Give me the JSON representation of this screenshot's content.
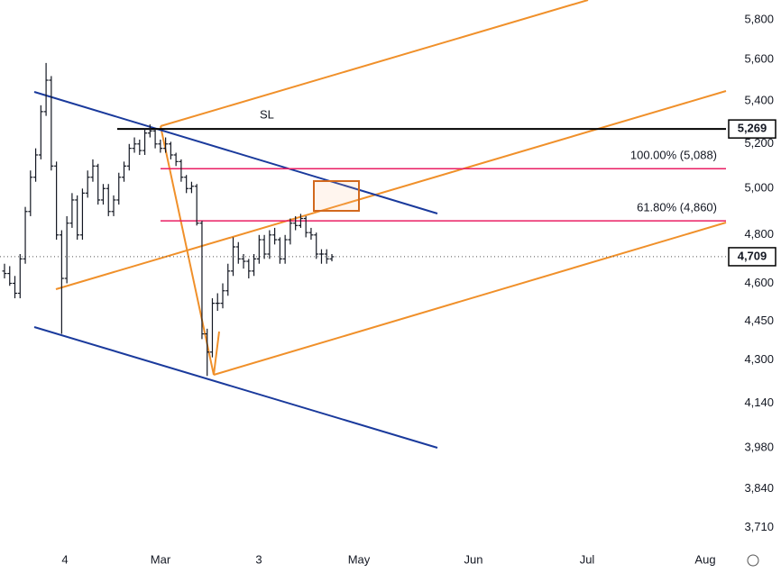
{
  "chart_data": {
    "type": "ohlc",
    "log_scale": true,
    "color": "#131722",
    "ylim": [
      3654,
      5902
    ],
    "yticks": [
      {
        "value": 5800,
        "label": "5,800"
      },
      {
        "value": 5600,
        "label": "5,600"
      },
      {
        "value": 5400,
        "label": "5,400"
      },
      {
        "value": 5200,
        "label": "5,200"
      },
      {
        "value": 5000,
        "label": "5,000"
      },
      {
        "value": 4800,
        "label": "4,800"
      },
      {
        "value": 4600,
        "label": "4,600"
      },
      {
        "value": 4450,
        "label": "4,450"
      },
      {
        "value": 4300,
        "label": "4,300"
      },
      {
        "value": 4140,
        "label": "4,140"
      },
      {
        "value": 3980,
        "label": "3,980"
      },
      {
        "value": 3840,
        "label": "3,840"
      },
      {
        "value": 3710,
        "label": "3,710"
      }
    ],
    "x_labels": [
      "4",
      "Mar",
      "3",
      "May",
      "Jun",
      "Jul",
      "Aug"
    ],
    "open": [
      4650,
      4640,
      4600,
      4560,
      4700,
      4900,
      5050,
      5150,
      5350,
      5500,
      5100,
      4800,
      4620,
      4850,
      4950,
      4800,
      4980,
      5050,
      5100,
      4950,
      5000,
      4900,
      4950,
      5050,
      5100,
      5180,
      5200,
      5170,
      5250,
      5260,
      5200,
      5180,
      5200,
      5150,
      5120,
      5050,
      5000,
      5010,
      4850,
      4400,
      4330,
      4520,
      4520,
      4570,
      4650,
      4750,
      4700,
      4690,
      4650,
      4700,
      4780,
      4720,
      4800,
      4780,
      4700,
      4780,
      4850,
      4840,
      4870,
      4810,
      4800,
      4720,
      4720,
      4700
    ],
    "high": [
      4680,
      4670,
      4630,
      4720,
      4920,
      5080,
      5180,
      5380,
      5584,
      5520,
      5120,
      4820,
      4880,
      4980,
      4970,
      5000,
      5080,
      5130,
      5110,
      5020,
      5020,
      4970,
      5070,
      5120,
      5200,
      5230,
      5220,
      5270,
      5290,
      5270,
      5220,
      5230,
      5210,
      5160,
      5130,
      5060,
      5030,
      5020,
      4860,
      4420,
      4540,
      4560,
      4600,
      4680,
      4790,
      4770,
      4720,
      4700,
      4720,
      4800,
      4800,
      4820,
      4830,
      4790,
      4800,
      4870,
      4880,
      4890,
      4880,
      4830,
      4810,
      4740,
      4740,
      4720
    ],
    "low": [
      4620,
      4590,
      4540,
      4540,
      4680,
      4880,
      5030,
      5130,
      5330,
      5080,
      4780,
      4400,
      4600,
      4830,
      4780,
      4780,
      4960,
      5030,
      4930,
      4930,
      4880,
      4880,
      4930,
      5030,
      5080,
      5160,
      5150,
      5150,
      5230,
      5180,
      5160,
      5160,
      5130,
      5100,
      5030,
      4980,
      4980,
      4840,
      4380,
      4240,
      4310,
      4490,
      4500,
      4550,
      4630,
      4680,
      4660,
      4620,
      4630,
      4680,
      4700,
      4700,
      4760,
      4680,
      4680,
      4760,
      4820,
      4830,
      4790,
      4780,
      4700,
      4680,
      4680,
      4690
    ],
    "close": [
      4640,
      4600,
      4560,
      4700,
      4900,
      5050,
      5150,
      5350,
      5500,
      5100,
      4800,
      4620,
      4850,
      4950,
      4800,
      4980,
      5050,
      5100,
      4950,
      5000,
      4900,
      4950,
      5050,
      5100,
      5180,
      5200,
      5170,
      5250,
      5260,
      5200,
      5180,
      5200,
      5150,
      5120,
      5050,
      5000,
      5010,
      4850,
      4400,
      4330,
      4520,
      4520,
      4570,
      4650,
      4750,
      4700,
      4690,
      4650,
      4700,
      4780,
      4720,
      4800,
      4780,
      4700,
      4780,
      4850,
      4840,
      4870,
      4810,
      4800,
      4720,
      4720,
      4700,
      4709
    ],
    "stop_loss": {
      "name": "SL",
      "value": 5269,
      "label": "5,269",
      "color": "#000000"
    },
    "fib_levels": [
      {
        "value": 5088,
        "label": "100.00% (5,088)",
        "color": "#e91e63"
      },
      {
        "value": 4860,
        "label": "61.80% (4,860)",
        "color": "#e91e63"
      }
    ],
    "last_price": {
      "value": 4709,
      "label": "4,709"
    }
  }
}
